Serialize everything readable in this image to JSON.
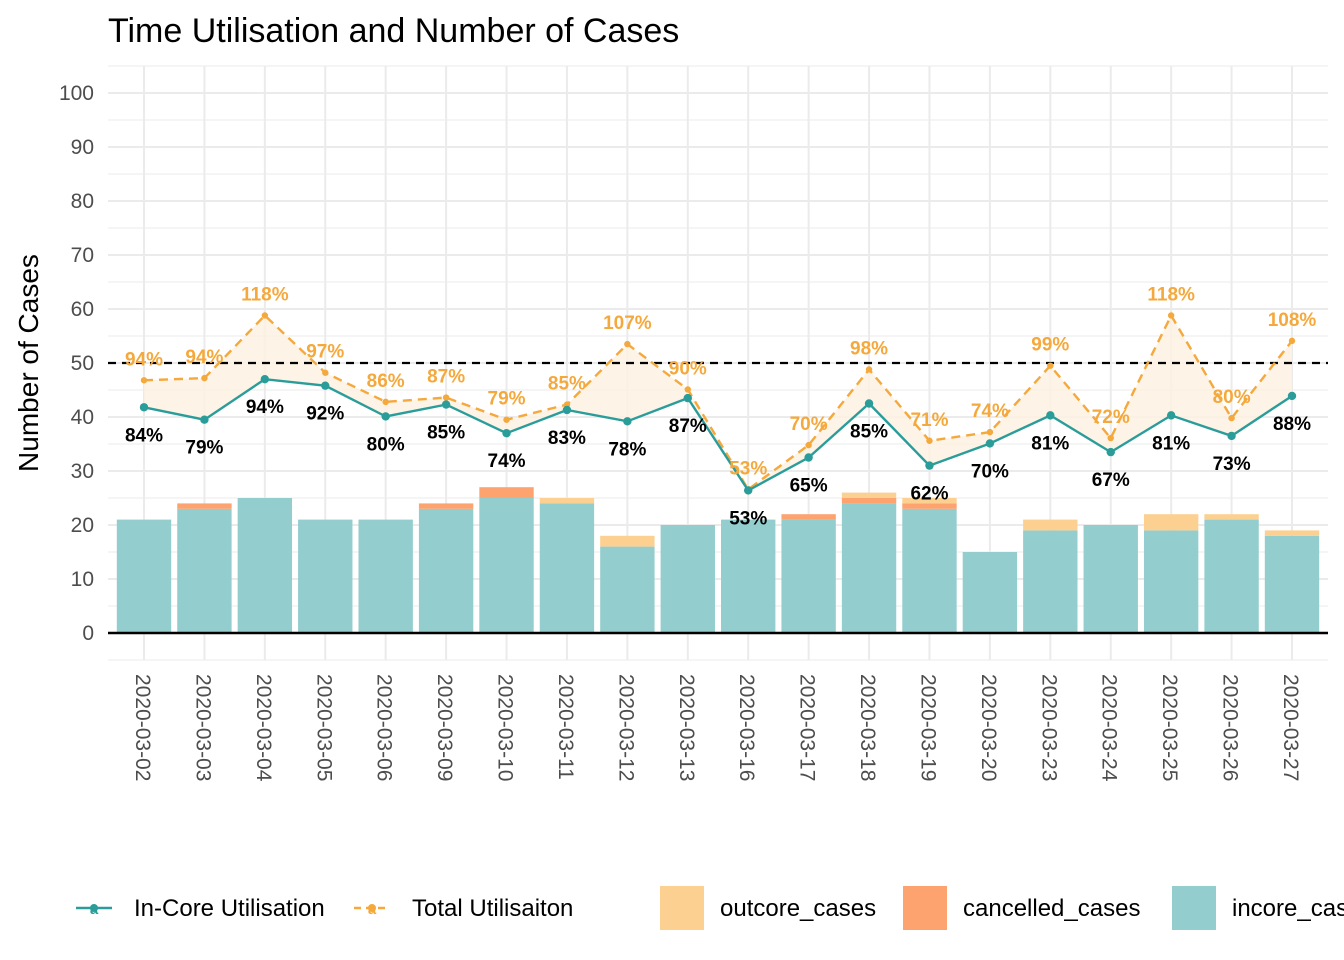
{
  "chart_data": {
    "type": "bar",
    "title": "Time Utilisation and Number of Cases",
    "ylabel": "Number of Cases",
    "xlabel": "",
    "ylim": [
      -5,
      105
    ],
    "yticks": [
      0,
      10,
      20,
      30,
      40,
      50,
      60,
      70,
      80,
      90,
      100
    ],
    "reference_line": 50,
    "categories": [
      "2020-03-02",
      "2020-03-03",
      "2020-03-04",
      "2020-03-05",
      "2020-03-06",
      "2020-03-09",
      "2020-03-10",
      "2020-03-11",
      "2020-03-12",
      "2020-03-13",
      "2020-03-16",
      "2020-03-17",
      "2020-03-18",
      "2020-03-19",
      "2020-03-20",
      "2020-03-23",
      "2020-03-24",
      "2020-03-25",
      "2020-03-26",
      "2020-03-27"
    ],
    "bars": [
      {
        "name": "incore_cases",
        "color": "#93CDCE",
        "values": [
          21,
          23,
          25,
          21,
          21,
          23,
          25,
          24,
          16,
          20,
          21,
          21,
          24,
          23,
          15,
          19,
          20,
          19,
          21,
          18
        ]
      },
      {
        "name": "cancelled_cases",
        "color": "#FCA370",
        "values": [
          0,
          1,
          0,
          0,
          0,
          1,
          2,
          0,
          0,
          0,
          0,
          1,
          1,
          1,
          0,
          0,
          0,
          0,
          0,
          0
        ]
      },
      {
        "name": "outcore_cases",
        "color": "#FBD091",
        "values": [
          0,
          0,
          0,
          0,
          0,
          0,
          0,
          1,
          2,
          0,
          0,
          0,
          1,
          1,
          0,
          2,
          0,
          3,
          1,
          1
        ]
      }
    ],
    "lines": [
      {
        "name": "In-Core Utilisation",
        "color": "#2A9D9A",
        "values": [
          41.8,
          39.5,
          47,
          45.8,
          40.1,
          42.3,
          37,
          41.3,
          39.2,
          43.5,
          26.4,
          32.5,
          42.5,
          31,
          35.1,
          40.3,
          33.5,
          40.3,
          36.5,
          43.9
        ],
        "labels": [
          "84%",
          "79%",
          "94%",
          "92%",
          "80%",
          "85%",
          "74%",
          "83%",
          "78%",
          "87%",
          "53%",
          "65%",
          "85%",
          "62%",
          "70%",
          "81%",
          "67%",
          "81%",
          "73%",
          "88%"
        ]
      },
      {
        "name": "Total Utilisaiton",
        "color": "#F5A83B",
        "values": [
          46.8,
          47.2,
          58.8,
          48.2,
          42.8,
          43.6,
          39.5,
          42.3,
          53.5,
          45.1,
          26.6,
          34.8,
          48.8,
          35.6,
          37.2,
          49.5,
          36.1,
          58.8,
          39.8,
          54.1
        ],
        "labels": [
          "94%",
          "94%",
          "118%",
          "97%",
          "86%",
          "87%",
          "79%",
          "85%",
          "107%",
          "90%",
          "53%",
          "70%",
          "98%",
          "71%",
          "74%",
          "99%",
          "72%",
          "118%",
          "80%",
          "108%"
        ]
      }
    ],
    "legend": {
      "position": "bottom",
      "line_items": [
        "In-Core Utilisation",
        "Total Utilisaiton"
      ],
      "bar_items": [
        "outcore_cases",
        "cancelled_cases",
        "incore_cases"
      ],
      "glyph": "a"
    },
    "grid": true
  }
}
